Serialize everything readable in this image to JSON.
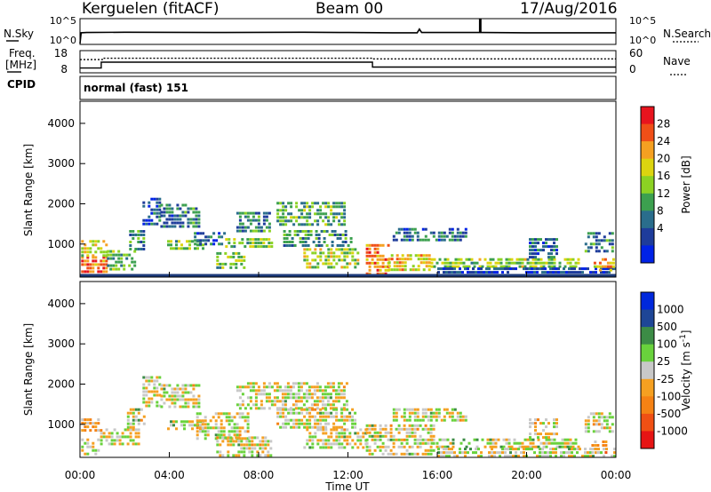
{
  "header": {
    "station": "Kerguelen (fitACF)",
    "beam": "Beam 00",
    "date": "17/Aug/2016"
  },
  "noise_panel": {
    "left_label": "N.Sky",
    "right_label": "N.Search",
    "left_ticks": [
      "10^5",
      "10^0"
    ],
    "right_ticks": [
      "10^5",
      "10^0"
    ]
  },
  "freq_panel": {
    "left_label_1": "Freq.",
    "left_label_2": "[MHz]",
    "right_label": "Nave",
    "left_ticks": [
      "18",
      "8"
    ],
    "right_ticks": [
      "60",
      "0"
    ]
  },
  "cpid": {
    "label": "CPID",
    "text": "normal (fast) 151"
  },
  "power_colorbar": {
    "label": "Power [dB]",
    "ticks": [
      "28",
      "24",
      "20",
      "16",
      "12",
      "8",
      "4"
    ],
    "colors": [
      "#e8141e",
      "#f04f18",
      "#f5a021",
      "#dcd40f",
      "#8cd223",
      "#3ca04f",
      "#2a6d8c",
      "#1e3c9b",
      "#0022e6"
    ]
  },
  "velocity_colorbar": {
    "label": "Velocity [m s",
    "label_sup": "-1",
    "label_end": "]",
    "ticks": [
      "1000",
      "500",
      "100",
      "25",
      "-25",
      "-100",
      "-500",
      "-1000"
    ],
    "colors": [
      "#0028dc",
      "#1e4696",
      "#3c8c46",
      "#69d23c",
      "#c8c8c8",
      "#f5a021",
      "#f58214",
      "#f05014",
      "#e61414"
    ]
  },
  "chart_data": [
    {
      "type": "line",
      "title": "",
      "ylabel": "N.Sky",
      "y2label": "N.Search",
      "xlim_hours": [
        0,
        24
      ],
      "series": [
        {
          "name": "N.Sky",
          "x": [
            0,
            0.05,
            0.3,
            2,
            6,
            10,
            12,
            14,
            15.1,
            15.2,
            15.3,
            16,
            17.9,
            17.9,
            17.95,
            17.95,
            18,
            20,
            22,
            24
          ],
          "y_frac": [
            0,
            0.45,
            0.46,
            0.47,
            0.46,
            0.47,
            0.46,
            0.45,
            0.45,
            0.6,
            0.46,
            0.46,
            0.46,
            1,
            1,
            0.46,
            0.46,
            0.45,
            0.45,
            0.45
          ]
        }
      ]
    },
    {
      "type": "line",
      "ylabel": "Freq. [MHz]",
      "y2label": "Nave",
      "ylim": [
        8,
        18
      ],
      "y2lim": [
        0,
        60
      ],
      "series": [
        {
          "name": "Freq.",
          "x": [
            0,
            0.95,
            0.95,
            13.1,
            13.1,
            24
          ],
          "y": [
            10,
            10,
            13,
            13,
            10.5,
            10.5
          ]
        },
        {
          "name": "Nave",
          "x": [
            0,
            1.0,
            1.0,
            13.1,
            13.1,
            24
          ],
          "y": [
            38,
            38,
            42,
            42,
            40,
            40
          ]
        }
      ]
    },
    {
      "type": "heatmap",
      "xlabel": "",
      "ylabel": "Slant Range [km]",
      "xticks": [
        "00:00",
        "04:00",
        "08:00",
        "12:00",
        "16:00",
        "20:00",
        "00:00"
      ],
      "yticks": [
        "1000",
        "2000",
        "3000",
        "4000"
      ],
      "xlim_hours": [
        0,
        24
      ],
      "ylim": [
        180,
        4550
      ],
      "zlabel": "Power [dB]",
      "zlim": [
        0,
        32
      ],
      "regions": [
        {
          "t": [
            0.05,
            1.2
          ],
          "r": [
            200,
            700
          ],
          "z": 26
        },
        {
          "t": [
            0.05,
            1.2
          ],
          "r": [
            700,
            1100
          ],
          "z": 18
        },
        {
          "t": [
            1.2,
            2.5
          ],
          "r": [
            350,
            850
          ],
          "z": 13
        },
        {
          "t": [
            2.2,
            2.8
          ],
          "r": [
            850,
            1350
          ],
          "z": 10
        },
        {
          "t": [
            2.8,
            3.6
          ],
          "r": [
            1450,
            2150
          ],
          "z": 6
        },
        {
          "t": [
            3.6,
            5.3
          ],
          "r": [
            1450,
            2000
          ],
          "z": 9
        },
        {
          "t": [
            3.9,
            5.5
          ],
          "r": [
            850,
            1100
          ],
          "z": 14
        },
        {
          "t": [
            5.1,
            6.5
          ],
          "r": [
            950,
            1300
          ],
          "z": 8
        },
        {
          "t": [
            6.1,
            7.4
          ],
          "r": [
            400,
            800
          ],
          "z": 15
        },
        {
          "t": [
            6.5,
            8.6
          ],
          "r": [
            900,
            1150
          ],
          "z": 16
        },
        {
          "t": [
            7.0,
            8.5
          ],
          "r": [
            1350,
            1800
          ],
          "z": 10
        },
        {
          "t": [
            8.8,
            11.8
          ],
          "r": [
            1500,
            2050
          ],
          "z": 13
        },
        {
          "t": [
            9.1,
            12.1
          ],
          "r": [
            950,
            1350
          ],
          "z": 11
        },
        {
          "t": [
            10.0,
            12.5
          ],
          "r": [
            400,
            900
          ],
          "z": 17
        },
        {
          "t": [
            12.8,
            13.8
          ],
          "r": [
            250,
            1000
          ],
          "z": 24
        },
        {
          "t": [
            13.8,
            15.7
          ],
          "r": [
            350,
            750
          ],
          "z": 21
        },
        {
          "t": [
            14.0,
            17.3
          ],
          "r": [
            1050,
            1400
          ],
          "z": 8
        },
        {
          "t": [
            15.7,
            22.3
          ],
          "r": [
            400,
            650
          ],
          "z": 16
        },
        {
          "t": [
            16.0,
            24.0
          ],
          "r": [
            180,
            420
          ],
          "z": 5
        },
        {
          "t": [
            20.1,
            21.3
          ],
          "r": [
            700,
            1150
          ],
          "z": 8
        },
        {
          "t": [
            22.6,
            23.9
          ],
          "r": [
            800,
            1300
          ],
          "z": 10
        },
        {
          "t": [
            23.0,
            23.9
          ],
          "r": [
            350,
            650
          ],
          "z": 22
        }
      ]
    },
    {
      "type": "heatmap",
      "xlabel": "Time UT",
      "ylabel": "Slant Range [km]",
      "xticks": [
        "00:00",
        "04:00",
        "08:00",
        "12:00",
        "16:00",
        "20:00",
        "00:00"
      ],
      "yticks": [
        "1000",
        "2000",
        "3000",
        "4000"
      ],
      "xlim_hours": [
        0,
        24
      ],
      "ylim": [
        180,
        4550
      ],
      "zlabel": "Velocity [m s-1]",
      "zlim": [
        -1000,
        1000
      ],
      "regions": [
        {
          "t": [
            0.05,
            0.8
          ],
          "r": [
            250,
            650
          ],
          "z": 60
        },
        {
          "t": [
            0.05,
            0.9
          ],
          "r": [
            800,
            1150
          ],
          "z": -300
        },
        {
          "t": [
            0.9,
            2.6
          ],
          "r": [
            500,
            900
          ],
          "z": 0
        },
        {
          "t": [
            2.1,
            2.9
          ],
          "r": [
            900,
            1400
          ],
          "z": 0
        },
        {
          "t": [
            2.8,
            3.6
          ],
          "r": [
            1450,
            2200
          ],
          "z": 0
        },
        {
          "t": [
            3.6,
            5.3
          ],
          "r": [
            1450,
            2000
          ],
          "z": 0
        },
        {
          "t": [
            3.9,
            5.5
          ],
          "r": [
            850,
            1100
          ],
          "z": 60
        },
        {
          "t": [
            5.2,
            7.5
          ],
          "r": [
            600,
            1300
          ],
          "z": 0
        },
        {
          "t": [
            6.1,
            8.6
          ],
          "r": [
            250,
            700
          ],
          "z": 0
        },
        {
          "t": [
            7.0,
            11.9
          ],
          "r": [
            1350,
            2050
          ],
          "z": 0
        },
        {
          "t": [
            8.8,
            12.3
          ],
          "r": [
            900,
            1400
          ],
          "z": 0
        },
        {
          "t": [
            10.0,
            12.8
          ],
          "r": [
            400,
            900
          ],
          "z": 0
        },
        {
          "t": [
            12.8,
            15.8
          ],
          "r": [
            250,
            1000
          ],
          "z": 0
        },
        {
          "t": [
            14.0,
            17.3
          ],
          "r": [
            1050,
            1400
          ],
          "z": 0
        },
        {
          "t": [
            15.7,
            22.3
          ],
          "r": [
            400,
            650
          ],
          "z": 60
        },
        {
          "t": [
            16.0,
            24.0
          ],
          "r": [
            180,
            420
          ],
          "z": 40
        },
        {
          "t": [
            20.1,
            21.3
          ],
          "r": [
            700,
            1150
          ],
          "z": 0
        },
        {
          "t": [
            22.6,
            23.9
          ],
          "r": [
            800,
            1300
          ],
          "z": 0
        },
        {
          "t": [
            22.9,
            23.5
          ],
          "r": [
            300,
            600
          ],
          "z": -300
        }
      ]
    }
  ]
}
